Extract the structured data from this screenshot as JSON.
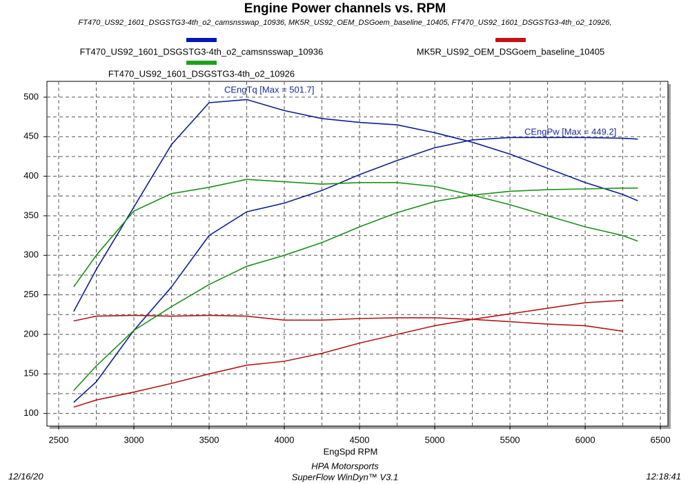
{
  "chart_data": {
    "type": "line",
    "title": "Engine Power channels vs. RPM",
    "subtitle": "FT470_US92_1601_DSGSTG3-4th_o2_camsnsswap_10936, MK5R_US92_OEM_DSGoem_baseline_10405, FT470_US92_1601_DSGSTG3-4th_o2_10926,",
    "x_label": "EngSpd RPM",
    "annotations": [
      "CEngTq [Max = 501.7]",
      "CEngPw [Max = 449.2]"
    ],
    "footer": [
      "HPA Motorsports",
      "SuperFlow WinDyn™ V3.1"
    ],
    "date": "12/16/20",
    "time": "12:18:41",
    "x": [
      2600,
      2750,
      3000,
      3250,
      3500,
      3750,
      4000,
      4250,
      4500,
      4750,
      5000,
      5250,
      5500,
      5750,
      6000,
      6250,
      6350
    ],
    "series": [
      {
        "name": "FT470_US92_1601_DSGSTG3-4th_o2_camsnsswap_10936",
        "color": "#0a1f8f",
        "legend_color": "#0018b8",
        "torque": [
          229,
          282,
          361,
          440,
          493,
          497,
          483,
          473,
          468,
          465,
          455,
          443,
          428,
          410,
          392,
          377,
          369
        ],
        "power": [
          114,
          140,
          205,
          260,
          325,
          355,
          366,
          382,
          402,
          420,
          436,
          446,
          449,
          449,
          449,
          448,
          447
        ]
      },
      {
        "name": "MK5R_US92_OEM_DSGoem_baseline_10405",
        "color": "#b01818",
        "legend_color": "#c81010",
        "torque": [
          217,
          223,
          224,
          223,
          224,
          223,
          218,
          218,
          220,
          221,
          221,
          219,
          216,
          213,
          211,
          204,
          null
        ],
        "power": [
          108,
          117,
          127,
          138,
          150,
          161,
          166,
          176,
          189,
          200,
          211,
          219,
          226,
          233,
          240,
          243,
          null
        ]
      },
      {
        "name": "FT470_US92_1601_DSGSTG3-4th_o2_10926",
        "color": "#1a901a",
        "legend_color": "#20a020",
        "torque": [
          260,
          300,
          356,
          378,
          386,
          396,
          393,
          390,
          392,
          392,
          387,
          376,
          364,
          350,
          336,
          325,
          318
        ],
        "power": [
          129,
          160,
          205,
          235,
          263,
          286,
          300,
          316,
          336,
          354,
          368,
          376,
          381,
          383,
          384,
          385,
          385
        ]
      }
    ],
    "xlim": [
      2422,
      6550
    ],
    "ylim": [
      84,
      520
    ],
    "xticks": [
      2500,
      3000,
      3500,
      4000,
      4500,
      5000,
      5500,
      6000,
      6500
    ],
    "yticks": [
      100,
      150,
      200,
      250,
      300,
      350,
      400,
      450,
      500
    ],
    "minor_xticks": [
      2750,
      3250,
      3750,
      4250,
      4750,
      5250,
      5750,
      6250
    ],
    "minor_yticks": [
      125,
      175,
      225,
      275,
      325,
      375,
      425,
      475
    ],
    "grid": true
  }
}
